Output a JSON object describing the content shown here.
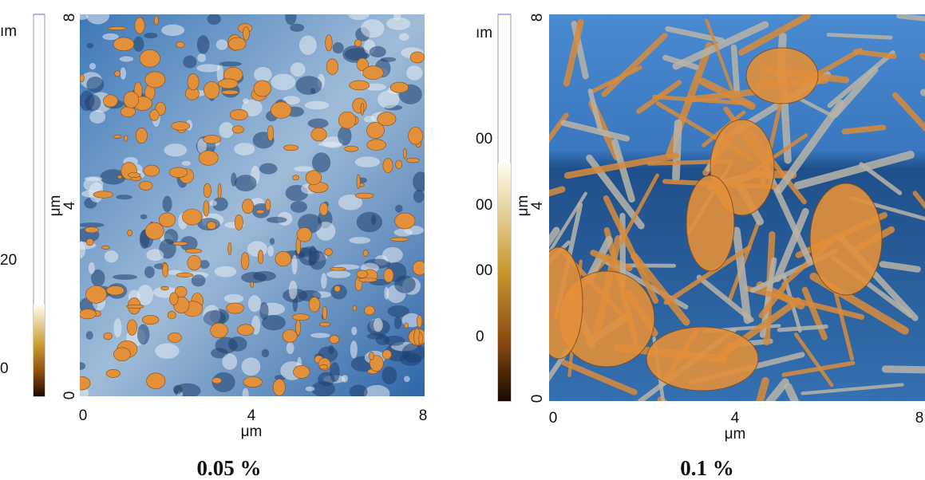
{
  "panels": [
    {
      "colorbar": {
        "labels": [
          "ım",
          "20",
          "0"
        ]
      },
      "y_axis": {
        "ticks": [
          "8",
          "4",
          "0"
        ],
        "label": "μm"
      },
      "x_axis": {
        "ticks": [
          "0",
          "4",
          "8"
        ],
        "label": "μm"
      },
      "caption": "0.05 %"
    },
    {
      "colorbar": {
        "labels": [
          "ım",
          "00",
          "00",
          "00",
          "0"
        ]
      },
      "y_axis": {
        "ticks": [
          "8",
          "4",
          "0"
        ],
        "label": "μm"
      },
      "x_axis": {
        "ticks": [
          "0",
          "4",
          "8"
        ],
        "label": "μm"
      },
      "caption": "0.1 %"
    }
  ]
}
